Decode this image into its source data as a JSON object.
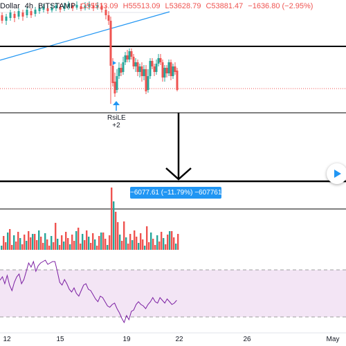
{
  "legend": {
    "symbol_suffix": "Dollar",
    "interval": "4h",
    "exchange": "BITSTAMP",
    "open": "O55513.09",
    "high": "H55513.09",
    "low": "L53628.79",
    "close": "C53881.47",
    "change": "−1636.80 (−2.95%)"
  },
  "signal": {
    "name": "RsiLE",
    "value": "+2"
  },
  "measurement": {
    "label": "−6077.61 (−11.79%) −607761"
  },
  "x_axis": {
    "labels": [
      "12",
      "15",
      "19",
      "22",
      "26",
      "May"
    ]
  },
  "colors": {
    "up": "#26a69a",
    "down": "#ef5350",
    "trendline": "#2196f3",
    "rsi": "#7b1fa2",
    "rsi_band": "#f3e5f5",
    "measure_box": "#2196f3"
  },
  "icons": {
    "play": "play-icon",
    "signal_arrow": "arrow-up-icon",
    "down_arrow": "arrow-down-icon"
  }
}
